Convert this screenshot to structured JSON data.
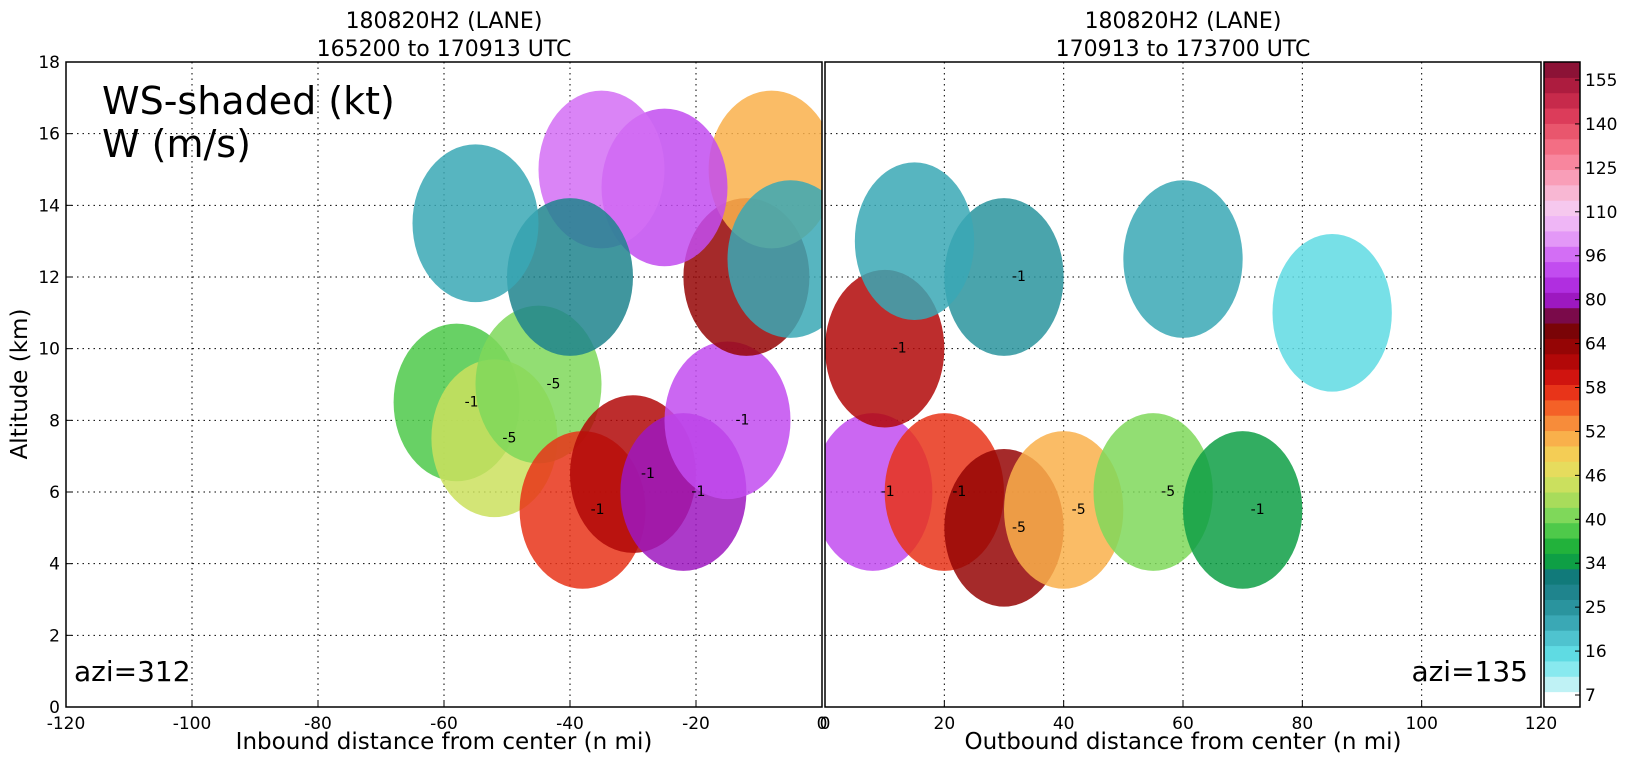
{
  "chart_data": [
    {
      "type": "heatmap",
      "title": "180820H2 (LANE)",
      "subtitle": "165200 to 170913 UTC",
      "xlabel": "Inbound distance from center (n mi)",
      "ylabel": "Altitude (km)",
      "xlim": [
        -120,
        0
      ],
      "ylim": [
        0,
        18
      ],
      "x_ticks": [
        "-120",
        "-100",
        "-80",
        "-60",
        "-40",
        "-20",
        "0"
      ],
      "y_ticks": [
        "0",
        "2",
        "4",
        "6",
        "8",
        "10",
        "12",
        "14",
        "16",
        "18"
      ],
      "grid": true,
      "annotations": {
        "variables_line1": "WS-shaded (kt)",
        "variables_line2": "W (m/s)",
        "azimuth": "azi=312"
      },
      "contour_labels": [
        "-1",
        "-5",
        "-5",
        "-1",
        "-1",
        "-1",
        "-1"
      ],
      "wind_field": [
        {
          "x": -58,
          "alt": 8.5,
          "ws": 38
        },
        {
          "x": -52,
          "alt": 7.5,
          "ws": 44
        },
        {
          "x": -45,
          "alt": 9.0,
          "ws": 40
        },
        {
          "x": -38,
          "alt": 5.5,
          "ws": 56
        },
        {
          "x": -30,
          "alt": 6.5,
          "ws": 60
        },
        {
          "x": -22,
          "alt": 6.0,
          "ws": 72
        },
        {
          "x": -15,
          "alt": 8.0,
          "ws": 80
        },
        {
          "x": -12,
          "alt": 12.0,
          "ws": 62
        },
        {
          "x": -8,
          "alt": 15.0,
          "ws": 50
        },
        {
          "x": -25,
          "alt": 14.5,
          "ws": 80
        },
        {
          "x": -35,
          "alt": 15.0,
          "ws": 84
        },
        {
          "x": -40,
          "alt": 12.0,
          "ws": 28
        },
        {
          "x": -55,
          "alt": 13.5,
          "ws": 22
        },
        {
          "x": -5,
          "alt": 12.5,
          "ws": 20
        }
      ]
    },
    {
      "type": "heatmap",
      "title": "180820H2 (LANE)",
      "subtitle": "170913 to 173700 UTC",
      "xlabel": "Outbound distance from center (n mi)",
      "ylabel": "",
      "xlim": [
        0,
        120
      ],
      "ylim": [
        0,
        18
      ],
      "x_ticks": [
        "0",
        "20",
        "40",
        "60",
        "80",
        "100",
        "120"
      ],
      "grid": true,
      "annotations": {
        "azimuth": "azi=135"
      },
      "contour_labels": [
        "-1",
        "-1",
        "-1",
        "-5",
        "-5",
        "-5",
        "-1",
        "-1"
      ],
      "wind_field": [
        {
          "x": 8,
          "alt": 6.0,
          "ws": 80
        },
        {
          "x": 10,
          "alt": 10.0,
          "ws": 60
        },
        {
          "x": 20,
          "alt": 6.0,
          "ws": 56
        },
        {
          "x": 30,
          "alt": 5.0,
          "ws": 62
        },
        {
          "x": 40,
          "alt": 5.5,
          "ws": 50
        },
        {
          "x": 55,
          "alt": 6.0,
          "ws": 40
        },
        {
          "x": 70,
          "alt": 5.5,
          "ws": 34
        },
        {
          "x": 30,
          "alt": 12.0,
          "ws": 25
        },
        {
          "x": 60,
          "alt": 12.5,
          "ws": 20
        },
        {
          "x": 85,
          "alt": 11.0,
          "ws": 16
        },
        {
          "x": 15,
          "alt": 13.0,
          "ws": 22
        }
      ]
    }
  ],
  "colorbar": {
    "labels": [
      "155",
      "140",
      "125",
      "110",
      "96",
      "80",
      "64",
      "58",
      "52",
      "46",
      "40",
      "34",
      "25",
      "16",
      "7"
    ],
    "colors": [
      "#ffffff",
      "#bff2f5",
      "#88e9ef",
      "#5fdbe3",
      "#4fc3cf",
      "#3aa8b5",
      "#2a949e",
      "#1f848d",
      "#117a7a",
      "#0e9f45",
      "#22b23b",
      "#4ec94a",
      "#7fd85a",
      "#a8dc5b",
      "#cbe05e",
      "#e6dc5d",
      "#f4cd55",
      "#f9b04b",
      "#f78c3a",
      "#f46127",
      "#e83419",
      "#d0140f",
      "#b20808",
      "#950505",
      "#7a0407",
      "#7a0a4a",
      "#9d18c0",
      "#b02ee0",
      "#c24cf0",
      "#d36ef5",
      "#e398f7",
      "#efb6f6",
      "#f6c8ee",
      "#f8b7d3",
      "#f99eb8",
      "#f8869e",
      "#f36e84",
      "#e9566d",
      "#dc3c5a",
      "#c72a4b",
      "#ad1c3f",
      "#8c1236"
    ]
  }
}
